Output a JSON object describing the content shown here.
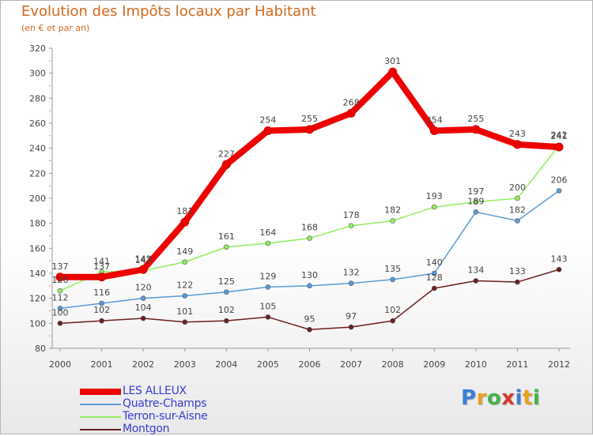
{
  "header": {
    "title": "Evolution des Impôts locaux par Habitant",
    "subtitle": "(en € et par an)"
  },
  "chart_data": {
    "type": "line",
    "title": "Evolution des Impôts locaux par Habitant",
    "subtitle": "(en € et par an)",
    "xlabel": "",
    "ylabel": "",
    "categories": [
      "2000",
      "2001",
      "2002",
      "2003",
      "2004",
      "2005",
      "2006",
      "2007",
      "2008",
      "2009",
      "2010",
      "2011",
      "2012"
    ],
    "ylim": [
      80,
      320
    ],
    "yticks": [
      80,
      100,
      120,
      140,
      160,
      180,
      200,
      220,
      240,
      260,
      280,
      300,
      320
    ],
    "grid": false,
    "legend_position": "bottom-left",
    "series": [
      {
        "name": "LES ALLEUX",
        "color": "#ee0000",
        "values": [
          137,
          137,
          143,
          181,
          227,
          254,
          255,
          268,
          301,
          254,
          255,
          243,
          241
        ]
      },
      {
        "name": "Quatre-Champs",
        "color": "#5b9bd5",
        "values": [
          112,
          116,
          120,
          122,
          125,
          129,
          130,
          132,
          135,
          140,
          189,
          182,
          206
        ]
      },
      {
        "name": "Terron-sur-Aisne",
        "color": "#90ee60",
        "values": [
          126,
          141,
          142,
          149,
          161,
          164,
          168,
          178,
          182,
          193,
          197,
          200,
          242
        ]
      },
      {
        "name": "Montgon",
        "color": "#6b1f1f",
        "values": [
          100,
          102,
          104,
          101,
          102,
          105,
          95,
          97,
          102,
          128,
          134,
          133,
          143
        ]
      }
    ]
  },
  "logo": {
    "letters": [
      "P",
      "r",
      "o",
      "x",
      "i",
      "t",
      "i"
    ],
    "colors": [
      "#3a7fd5",
      "#e8a020",
      "#48b048",
      "#d83a2a",
      "#3a7fd5",
      "#e8a020",
      "#48b048"
    ]
  }
}
